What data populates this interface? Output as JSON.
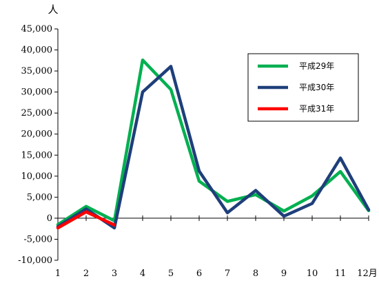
{
  "chart_data": {
    "type": "line",
    "y_unit": "人",
    "x": [
      1,
      2,
      3,
      4,
      5,
      6,
      7,
      8,
      9,
      10,
      11,
      12
    ],
    "x_tick_labels": [
      "1",
      "2",
      "3",
      "4",
      "5",
      "6",
      "7",
      "8",
      "9",
      "10",
      "11",
      "12月"
    ],
    "ylim": [
      -10000,
      45000
    ],
    "y_ticks": [
      -10000,
      -5000,
      0,
      5000,
      10000,
      15000,
      20000,
      25000,
      30000,
      35000,
      40000,
      45000
    ],
    "y_tick_labels": [
      "-10,000",
      "-5,000",
      "0",
      "5,000",
      "10,000",
      "15,000",
      "20,000",
      "25,000",
      "30,000",
      "35,000",
      "40,000",
      "45,000"
    ],
    "grid": false,
    "legend_position": "top-right",
    "series": [
      {
        "name": "平成29年",
        "color": "#00b050",
        "x": [
          1,
          2,
          3,
          4,
          5,
          6,
          7,
          8,
          9,
          10,
          11,
          12
        ],
        "values": [
          -1500,
          2800,
          -600,
          37600,
          30600,
          8800,
          4000,
          5600,
          1700,
          5300,
          11100,
          1800
        ]
      },
      {
        "name": "平成30年",
        "color": "#1f3f7a",
        "x": [
          1,
          2,
          3,
          4,
          5,
          6,
          7,
          8,
          9,
          10,
          11,
          12
        ],
        "values": [
          -2000,
          2200,
          -2300,
          30000,
          36100,
          11200,
          1300,
          6600,
          500,
          3500,
          14300,
          2000
        ]
      },
      {
        "name": "平成31年",
        "color": "#ff0000",
        "x": [
          1,
          2,
          3
        ],
        "values": [
          -2300,
          1500,
          -1600
        ]
      }
    ]
  }
}
